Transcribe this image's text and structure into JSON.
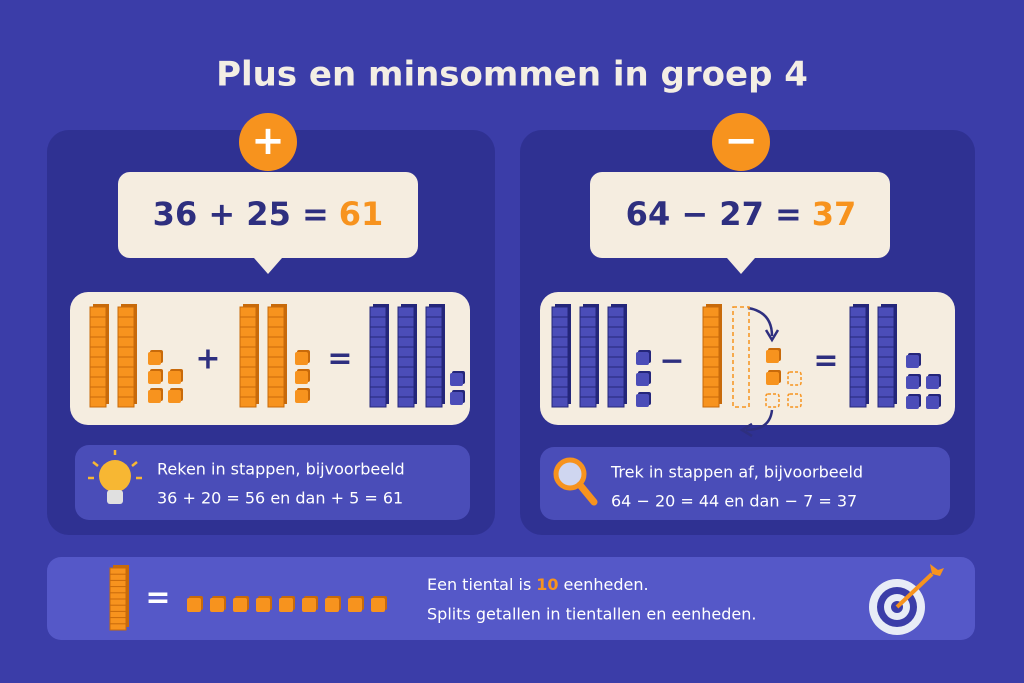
{
  "header": {
    "title": "Plus en minsommen in groep 4"
  },
  "panels": [
    {
      "sign": "+",
      "equation": "36 + 25 =",
      "answer": "61",
      "operator": "+",
      "equals": "=",
      "tip": [
        "Reken in stappen, bijvoorbeeld",
        "36 + 20 = 56 en dan + 5 = 61"
      ]
    },
    {
      "sign": "−",
      "equation": "64 − 27 =",
      "answer": "37",
      "operator": "−",
      "equals": "=",
      "tip": [
        "Trek in stappen af, bijvoorbeeld",
        "64 − 20 = 44 en dan − 7 = 37"
      ]
    }
  ],
  "footer": {
    "equals": "=",
    "line1": [
      "Een tiental is",
      "10",
      "eenheden."
    ],
    "line2": "Splits getallen in tientallen en eenheden."
  }
}
